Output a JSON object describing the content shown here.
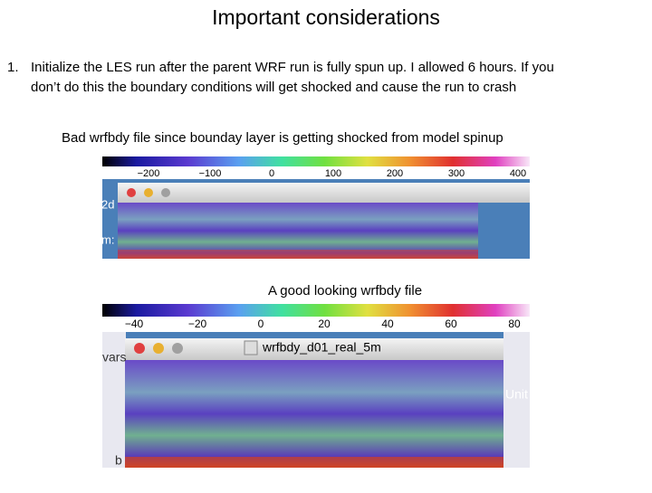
{
  "title": "Important considerations",
  "list": [
    {
      "number": "1.",
      "lines": [
        "Initialize the LES run after the parent WRF run is fully spun up.  I allowed 6 hours.  If you",
        "don’t do this the boundary conditions will get shocked and cause the run to crash"
      ]
    }
  ],
  "figures": [
    {
      "caption": "Bad wrfbdy file since bounday layer is getting shocked from model spinup",
      "colorbar_labels": [
        "−200",
        "−100",
        "0",
        "100",
        "200",
        "300",
        "400"
      ],
      "side_labels": [
        "2d",
        "m:"
      ]
    },
    {
      "caption": "A good looking wrfbdy file",
      "colorbar_labels": [
        "−40",
        "−20",
        "0",
        "20",
        "40",
        "60",
        "80"
      ],
      "window_title": "wrfbdy_d01_real_5m",
      "side_labels": [
        "vars",
        "Unit",
        "b"
      ]
    }
  ]
}
